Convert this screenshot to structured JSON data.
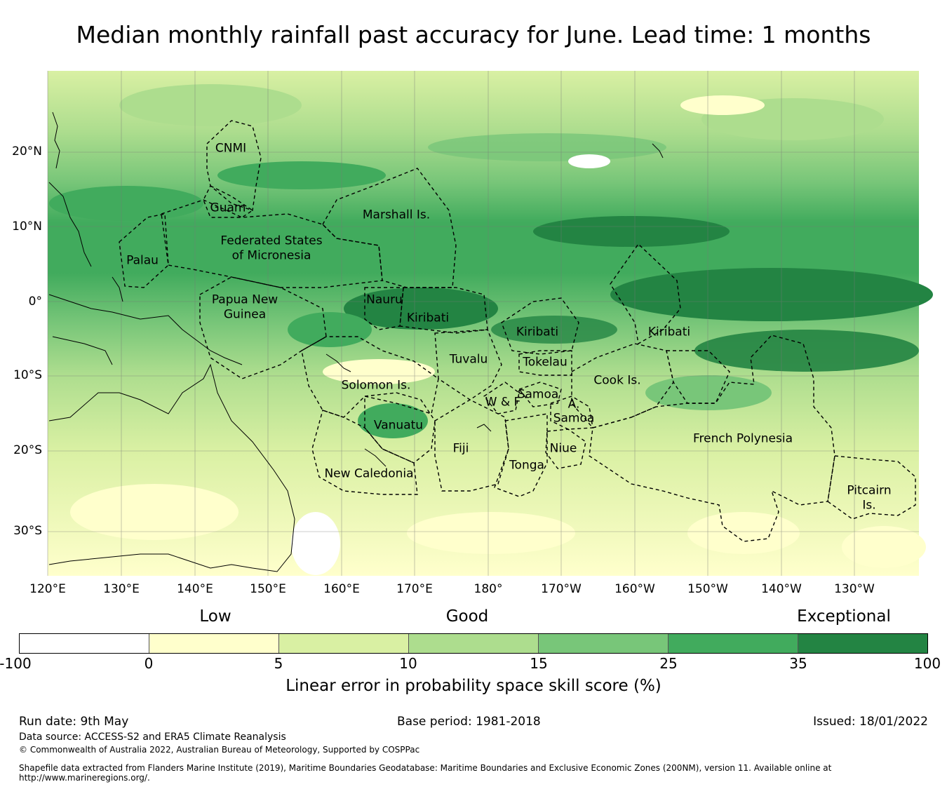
{
  "title": "Median monthly rainfall past accuracy for June. Lead time: 1 months",
  "lat_ticks": [
    "20°N",
    "10°N",
    "0°",
    "10°S",
    "20°S",
    "30°S"
  ],
  "lon_ticks": [
    "120°E",
    "130°E",
    "140°E",
    "150°E",
    "160°E",
    "170°E",
    "180°",
    "170°W",
    "160°W",
    "150°W",
    "140°W",
    "130°W"
  ],
  "regions": [
    "CNMI",
    "Guam",
    "Marshall Is.",
    "Federated States",
    "of Micronesia",
    "Palau",
    "Papua New",
    "Guinea",
    "Nauru",
    "Kiribati",
    "Kiribati",
    "Kiribati",
    "Tuvalu",
    "Tokelau",
    "Solomon Is.",
    "Samoa",
    "W & F",
    "A.",
    "Samoa",
    "Cook Is.",
    "Vanuatu",
    "Fiji",
    "Niue",
    "Tonga",
    "French Polynesia",
    "New Caledonia",
    "Pitcairn",
    "Is."
  ],
  "legend": {
    "categories": [
      "Low",
      "Good",
      "Exceptional"
    ],
    "colors": [
      "#ffffff",
      "#ffffcc",
      "#d9f0a3",
      "#addd8e",
      "#78c679",
      "#41ab5d",
      "#238443"
    ],
    "ticks": [
      "-100",
      "0",
      "5",
      "10",
      "15",
      "25",
      "35",
      "100"
    ],
    "label": "Linear error in probability space skill score (%)"
  },
  "footer": {
    "run_date": "Run date: 9th May",
    "base_period": "Base period: 1981-2018",
    "issued": "Issued: 18/01/2022",
    "data_source": "Data source: ACCESS-S2 and ERA5 Climate Reanalysis",
    "copyright": "© Commonwealth of Australia 2022, Australian Bureau of Meteorology, Supported by COSPPac",
    "shapefile": "Shapefile data extracted from Flanders Marine Institute (2019), Maritime Boundaries Geodatabase: Maritime Boundaries and Exclusive Economic Zones (200NM), version 11. Available online at http://www.marineregions.org/."
  }
}
